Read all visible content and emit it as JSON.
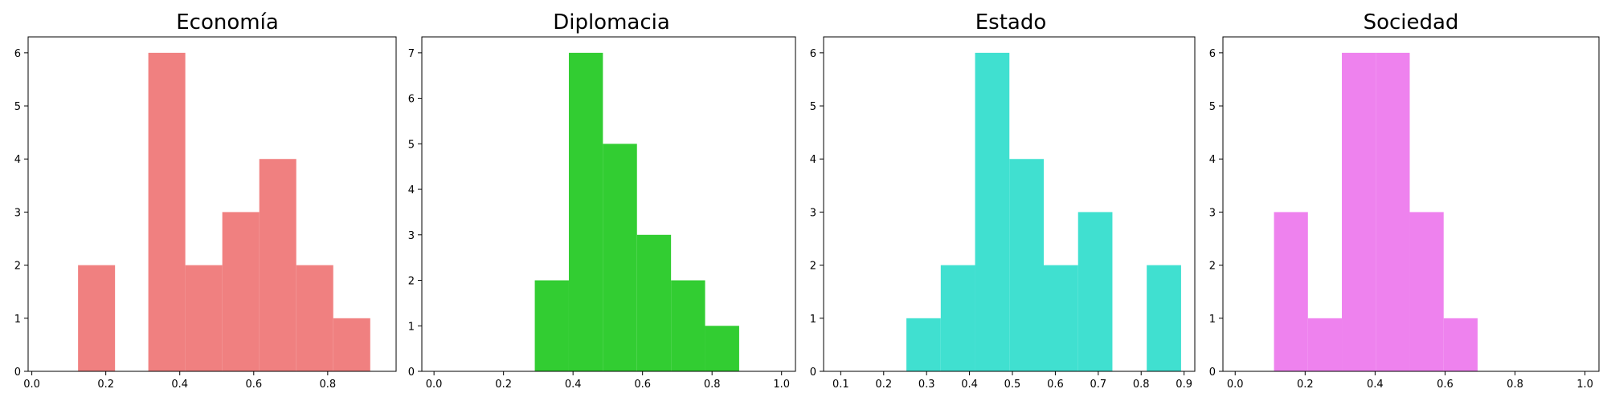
{
  "chart_data": [
    {
      "type": "bar",
      "title": "Economía",
      "color": "#f08080",
      "xlim": [
        -0.01,
        0.985
      ],
      "ylim": [
        0,
        6.3
      ],
      "xticks": [
        0.0,
        0.2,
        0.4,
        0.6,
        0.8
      ],
      "xtick_labels": [
        "0.0",
        "0.2",
        "0.4",
        "0.6",
        "0.8"
      ],
      "yticks": [
        0,
        1,
        2,
        3,
        4,
        5,
        6
      ],
      "ytick_labels": [
        "0",
        "1",
        "2",
        "3",
        "4",
        "5",
        "6"
      ],
      "bins": [
        {
          "x0": 0.125,
          "x1": 0.225,
          "value": 2
        },
        {
          "x0": 0.315,
          "x1": 0.415,
          "value": 6
        },
        {
          "x0": 0.415,
          "x1": 0.515,
          "value": 2
        },
        {
          "x0": 0.515,
          "x1": 0.615,
          "value": 3
        },
        {
          "x0": 0.615,
          "x1": 0.715,
          "value": 4
        },
        {
          "x0": 0.715,
          "x1": 0.815,
          "value": 2
        },
        {
          "x0": 0.815,
          "x1": 0.915,
          "value": 1
        }
      ],
      "grid": false
    },
    {
      "type": "bar",
      "title": "Diplomacia",
      "color": "#32cd32",
      "xlim": [
        -0.035,
        1.04
      ],
      "ylim": [
        0,
        7.35
      ],
      "xticks": [
        0.0,
        0.2,
        0.4,
        0.6,
        0.8,
        1.0
      ],
      "xtick_labels": [
        "0.0",
        "0.2",
        "0.4",
        "0.6",
        "0.8",
        "1.0"
      ],
      "yticks": [
        0,
        1,
        2,
        3,
        4,
        5,
        6,
        7
      ],
      "ytick_labels": [
        "0",
        "1",
        "2",
        "3",
        "4",
        "5",
        "6",
        "7"
      ],
      "bins": [
        {
          "x0": 0.29,
          "x1": 0.388,
          "value": 2
        },
        {
          "x0": 0.388,
          "x1": 0.486,
          "value": 7
        },
        {
          "x0": 0.486,
          "x1": 0.584,
          "value": 5
        },
        {
          "x0": 0.584,
          "x1": 0.682,
          "value": 3
        },
        {
          "x0": 0.682,
          "x1": 0.78,
          "value": 2
        },
        {
          "x0": 0.78,
          "x1": 0.878,
          "value": 1
        }
      ],
      "grid": false
    },
    {
      "type": "bar",
      "title": "Estado",
      "color": "#40e0d0",
      "xlim": [
        0.06,
        0.925
      ],
      "ylim": [
        0,
        6.3
      ],
      "xticks": [
        0.1,
        0.2,
        0.3,
        0.4,
        0.5,
        0.6,
        0.7,
        0.8,
        0.9
      ],
      "xtick_labels": [
        "0.1",
        "0.2",
        "0.3",
        "0.4",
        "0.5",
        "0.6",
        "0.7",
        "0.8",
        "0.9"
      ],
      "yticks": [
        0,
        1,
        2,
        3,
        4,
        5,
        6
      ],
      "ytick_labels": [
        "0",
        "1",
        "2",
        "3",
        "4",
        "5",
        "6"
      ],
      "bins": [
        {
          "x0": 0.253,
          "x1": 0.333,
          "value": 1
        },
        {
          "x0": 0.333,
          "x1": 0.413,
          "value": 2
        },
        {
          "x0": 0.413,
          "x1": 0.493,
          "value": 6
        },
        {
          "x0": 0.493,
          "x1": 0.573,
          "value": 4
        },
        {
          "x0": 0.573,
          "x1": 0.653,
          "value": 2
        },
        {
          "x0": 0.653,
          "x1": 0.733,
          "value": 3
        },
        {
          "x0": 0.813,
          "x1": 0.893,
          "value": 2
        }
      ],
      "grid": false
    },
    {
      "type": "bar",
      "title": "Sociedad",
      "color": "#ee82ee",
      "xlim": [
        -0.035,
        1.04
      ],
      "ylim": [
        0,
        6.3
      ],
      "xticks": [
        0.0,
        0.2,
        0.4,
        0.6,
        0.8,
        1.0
      ],
      "xtick_labels": [
        "0.0",
        "0.2",
        "0.4",
        "0.6",
        "0.8",
        "1.0"
      ],
      "yticks": [
        0,
        1,
        2,
        3,
        4,
        5,
        6
      ],
      "ytick_labels": [
        "0",
        "1",
        "2",
        "3",
        "4",
        "5",
        "6"
      ],
      "bins": [
        {
          "x0": 0.111,
          "x1": 0.208,
          "value": 3
        },
        {
          "x0": 0.208,
          "x1": 0.305,
          "value": 1
        },
        {
          "x0": 0.305,
          "x1": 0.402,
          "value": 6
        },
        {
          "x0": 0.402,
          "x1": 0.499,
          "value": 6
        },
        {
          "x0": 0.499,
          "x1": 0.596,
          "value": 3
        },
        {
          "x0": 0.596,
          "x1": 0.693,
          "value": 1
        }
      ],
      "grid": false
    }
  ]
}
